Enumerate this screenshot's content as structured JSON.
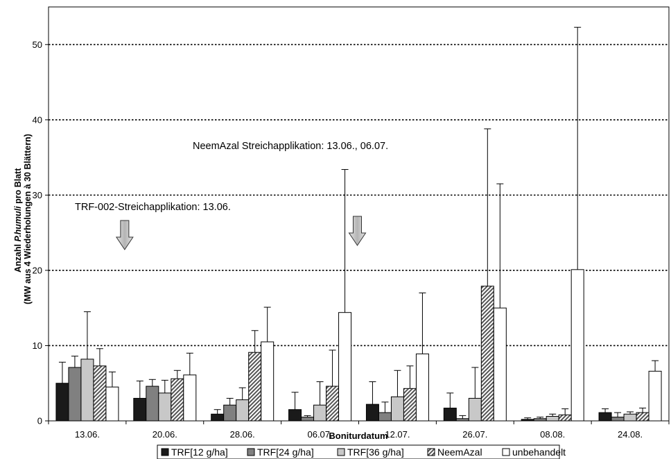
{
  "chart_data": {
    "type": "bar",
    "title": "",
    "xlabel": "Boniturdatum",
    "ylabel_line1_prefix": "Anzahl ",
    "ylabel_line1_italic": "P.humuli",
    "ylabel_line1_suffix": " pro Blatt",
    "ylabel_line2": "(MW aus 4 Wiederholungen à 30 Blättern)",
    "ylim": [
      0,
      55
    ],
    "yticks": [
      0,
      10,
      20,
      30,
      40,
      50
    ],
    "grid": "horizontal dotted at major ticks",
    "legend_position": "bottom",
    "categories": [
      "13.06.",
      "20.06.",
      "28.06.",
      "06.07.",
      "12.07.",
      "26.07.",
      "08.08.",
      "24.08."
    ],
    "series": [
      {
        "name": "TRF[12 g/ha]",
        "color": "#1a1a1a",
        "pattern": "solid",
        "values": [
          5.0,
          3.0,
          0.9,
          1.5,
          2.2,
          1.7,
          0.2,
          1.1
        ],
        "err": [
          2.8,
          2.3,
          0.6,
          2.3,
          3.0,
          2.0,
          0.2,
          0.5
        ]
      },
      {
        "name": "TRF[24 g/ha]",
        "color": "#808080",
        "pattern": "solid",
        "values": [
          7.1,
          4.6,
          2.1,
          0.5,
          1.1,
          0.3,
          0.3,
          0.5
        ],
        "err": [
          1.5,
          0.9,
          0.9,
          0.2,
          1.4,
          0.4,
          0.2,
          0.6
        ]
      },
      {
        "name": "TRF[36 g/ha]",
        "color": "#c8c8c8",
        "pattern": "solid",
        "values": [
          8.2,
          3.7,
          2.8,
          2.1,
          3.2,
          3.0,
          0.6,
          0.9
        ],
        "err": [
          6.3,
          1.7,
          1.6,
          3.1,
          3.5,
          4.1,
          0.3,
          0.3
        ]
      },
      {
        "name": "NeemAzal",
        "color": "#888888",
        "pattern": "hatch",
        "values": [
          7.3,
          5.6,
          9.1,
          4.6,
          4.3,
          17.9,
          0.8,
          1.1
        ],
        "err": [
          2.3,
          1.1,
          2.9,
          4.8,
          3.0,
          20.9,
          0.8,
          0.6
        ]
      },
      {
        "name": "unbehandelt",
        "color": "#ffffff",
        "pattern": "solid",
        "values": [
          4.5,
          6.1,
          10.5,
          14.4,
          8.9,
          15.0,
          20.1,
          6.6
        ],
        "err": [
          2.0,
          2.9,
          4.6,
          19.0,
          8.1,
          16.5,
          32.2,
          1.4
        ]
      }
    ],
    "annotations": [
      {
        "text": "TRF-002-Streichapplikation: 13.06.",
        "arrow_category": "13.06.",
        "arrow_offset": 0.5
      },
      {
        "text": "NeemAzal Streichapplikation: 13.06., 06.07.",
        "arrow_category": "06.07.",
        "arrow_offset": 0.5
      }
    ]
  }
}
